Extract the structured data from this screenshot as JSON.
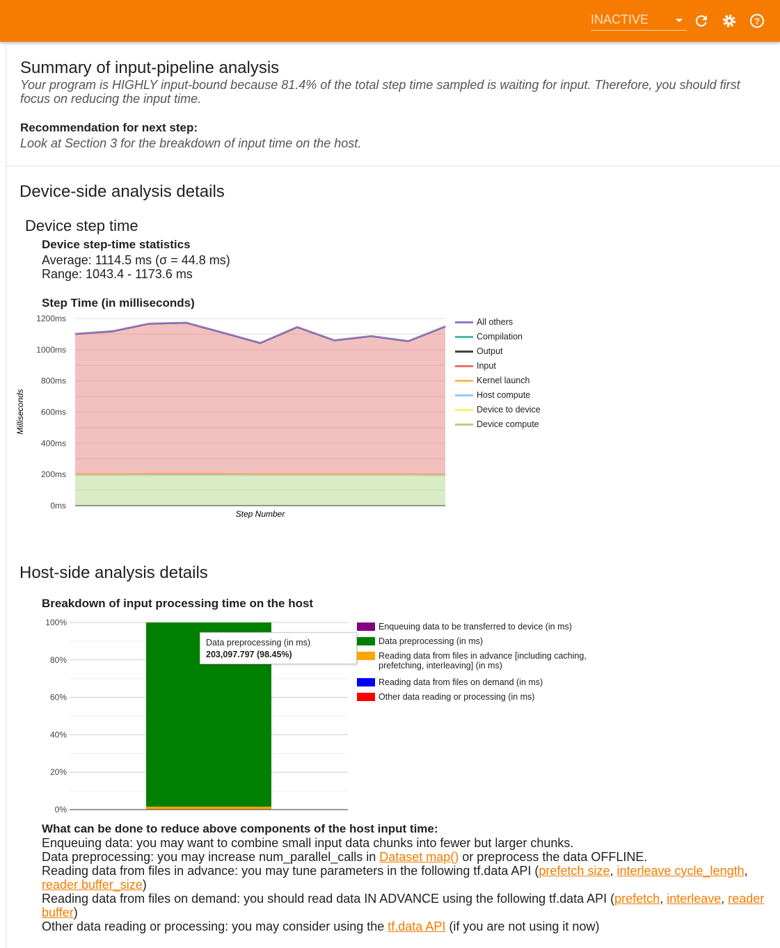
{
  "topbar": {
    "run_select": "INACTIVE",
    "icons": [
      "refresh-icon",
      "settings-icon",
      "help-icon"
    ],
    "color": "#f57c00"
  },
  "summary": {
    "title": "Summary of input-pipeline analysis",
    "text": "Your program is HIGHLY input-bound because 81.4% of the total step time sampled is waiting for input. Therefore, you should first focus on reducing the input time.",
    "rec_label": "Recommendation for next step:",
    "rec_text": "Look at Section 3 for the breakdown of input time on the host."
  },
  "device": {
    "title": "Device-side analysis details",
    "subtitle": "Device step time",
    "stats_title": "Device step-time statistics",
    "average": "Average: 1114.5 ms (σ = 44.8 ms)",
    "range": "Range: 1043.4 - 1173.6 ms",
    "chart_title": "Step Time (in milliseconds)"
  },
  "host": {
    "title": "Host-side analysis details",
    "chart_title": "Breakdown of input processing time on the host",
    "tooltip": {
      "label": "Data preprocessing (in ms)",
      "value": "203,097.797 (98.45%)"
    },
    "recs_title": "What can be done to reduce above components of the host input time:",
    "recs": {
      "r1": "Enqueuing data: you may want to combine small input data chunks into fewer but larger chunks.",
      "r2a": "Data preprocessing: you may increase num_parallel_calls in ",
      "r2link": "Dataset map()",
      "r2b": " or preprocess the data OFFLINE.",
      "r3a": "Reading data from files in advance: you may tune parameters in the following tf.data API (",
      "r3l1": "prefetch size",
      "r3l2": "interleave cycle_length",
      "r3l3": "reader buffer_size",
      "r3b": ")",
      "r4a": "Reading data from files on demand: you should read data IN ADVANCE using the following tf.data API (",
      "r4l1": "prefetch",
      "r4l2": "interleave",
      "r4l3": "reader buffer",
      "r4b": ")",
      "r5a": "Other data reading or processing: you may consider using the ",
      "r5link": "tf.data API",
      "r5b": " (if you are not using it now)",
      "comma": ", "
    }
  },
  "chart_data": [
    {
      "type": "area",
      "stacked": true,
      "title": "Step Time (in milliseconds)",
      "xlabel": "Step Number",
      "ylabel": "Milliseconds",
      "ylim": [
        0,
        1200
      ],
      "yticks": [
        "0ms",
        "200ms",
        "400ms",
        "600ms",
        "800ms",
        "1000ms",
        "1200ms"
      ],
      "grid": true,
      "legend": "right",
      "x": [
        0,
        1,
        2,
        3,
        4,
        5,
        6,
        7,
        8,
        9,
        10
      ],
      "series": [
        {
          "name": "Device compute",
          "color": "#aed581",
          "values": [
            195,
            195,
            196,
            196,
            196,
            195,
            195,
            195,
            195,
            195,
            194
          ]
        },
        {
          "name": "Device to device",
          "color": "#fff176",
          "values": [
            2,
            2,
            2,
            2,
            2,
            2,
            2,
            2,
            2,
            2,
            2
          ]
        },
        {
          "name": "Host compute",
          "color": "#90caf9",
          "values": [
            1,
            1,
            1,
            1,
            1,
            1,
            1,
            1,
            1,
            1,
            1
          ]
        },
        {
          "name": "Kernel launch",
          "color": "#ffb74d",
          "values": [
            5,
            5,
            5,
            5,
            5,
            5,
            5,
            5,
            5,
            5,
            5
          ]
        },
        {
          "name": "Input",
          "color": "#e57373",
          "values": [
            897,
            914,
            962,
            968,
            904,
            839,
            941,
            856,
            883,
            851,
            946
          ]
        },
        {
          "name": "Output",
          "color": "#424242",
          "values": [
            0,
            0,
            0,
            0,
            0,
            0,
            0,
            0,
            0,
            0,
            0
          ]
        },
        {
          "name": "Compilation",
          "color": "#4db6ac",
          "values": [
            2,
            2,
            2,
            2,
            2,
            2,
            2,
            2,
            2,
            2,
            2
          ]
        },
        {
          "name": "All others",
          "color": "#9575cd",
          "values": [
            1,
            1,
            1,
            1,
            1,
            1,
            1,
            1,
            1,
            1,
            1
          ]
        }
      ]
    },
    {
      "type": "bar",
      "stacked": true,
      "percent": true,
      "title": "Breakdown of input processing time on the host",
      "ylim": [
        0,
        100
      ],
      "yticks": [
        "0%",
        "20%",
        "40%",
        "60%",
        "80%",
        "100%"
      ],
      "legend": "right",
      "series": [
        {
          "name": "Enqueuing data to be transferred to device (in ms)",
          "color": "#800080",
          "value": 0.0
        },
        {
          "name": "Data preprocessing (in ms)",
          "color": "#008000",
          "value": 98.45
        },
        {
          "name": "Reading data from files in advance [including caching, prefetching, interleaving] (in ms)",
          "color": "#ffa500",
          "value": 1.55
        },
        {
          "name": "Reading data from files on demand (in ms)",
          "color": "#0000ff",
          "value": 0.0
        },
        {
          "name": "Other data reading or processing (in ms)",
          "color": "#ff0000",
          "value": 0.0
        }
      ]
    }
  ]
}
